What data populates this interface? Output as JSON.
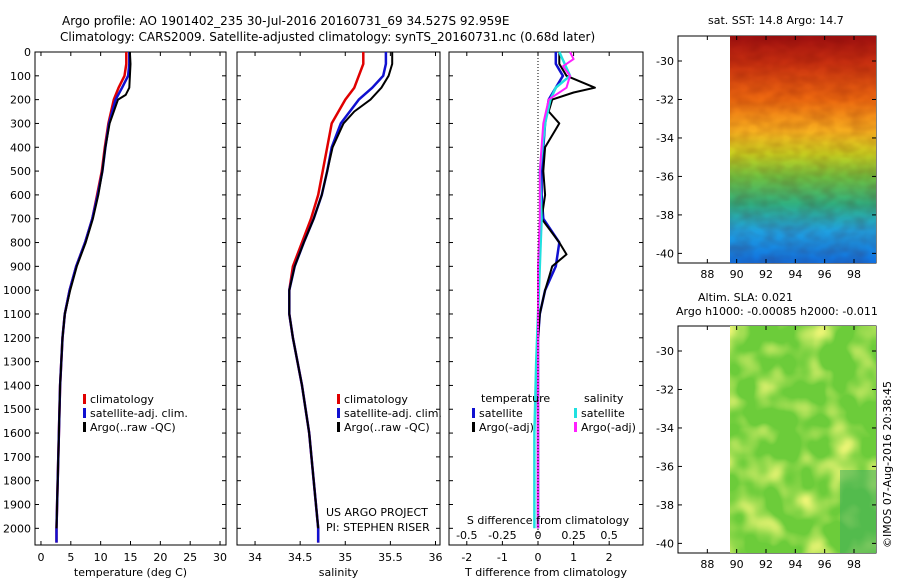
{
  "header": {
    "line1": "Argo profile: AO 1901402_235 30-Jul-2016 20160731_69 34.527S 92.959E",
    "line2": "Climatology: CARS2009. Satellite-adjusted climatology: synTS_20160731.nc (0.68d later)"
  },
  "colors": {
    "climatology": "#e00000",
    "satellite": "#1010d0",
    "argo": "#000000",
    "satellite_salinity": "#20e0e0",
    "argo_salinity": "#ff20ff"
  },
  "credits": {
    "project": "US ARGO PROJECT",
    "pi": "PI: STEPHEN RISER",
    "stamp": "©IMOS 07-Aug-2016 20:38:45"
  },
  "chart_data": [
    {
      "type": "line",
      "panel": "temperature",
      "xlabel": "temperature (deg C)",
      "ylabel": "",
      "xlim": [
        -1,
        31
      ],
      "ylim": [
        2070,
        0
      ],
      "xticks": [
        0,
        5,
        10,
        15,
        20,
        25,
        30
      ],
      "yticks": [
        0,
        100,
        200,
        300,
        400,
        500,
        600,
        700,
        800,
        900,
        1000,
        1100,
        1200,
        1300,
        1400,
        1500,
        1600,
        1700,
        1800,
        1900,
        2000
      ],
      "legend": [
        "climatology",
        "satellite-adj. clim.",
        "Argo(..raw -QC)"
      ],
      "series": [
        {
          "name": "climatology",
          "pressure": [
            0,
            50,
            100,
            150,
            200,
            300,
            400,
            500,
            600,
            700,
            800,
            900,
            1000,
            1100,
            1200,
            1400,
            1600,
            1800,
            2000,
            2060
          ],
          "values": [
            14.3,
            14.3,
            14.0,
            13.0,
            12.2,
            11.3,
            10.7,
            10.2,
            9.4,
            8.6,
            7.4,
            5.9,
            4.8,
            4.0,
            3.6,
            3.2,
            3.0,
            2.8,
            2.6,
            2.6
          ]
        },
        {
          "name": "satellite-adj. clim.",
          "pressure": [
            0,
            50,
            100,
            150,
            200,
            300,
            400,
            500,
            600,
            700,
            800,
            900,
            1000,
            1100,
            1200,
            1400,
            1600,
            1800,
            2000,
            2060
          ],
          "values": [
            14.8,
            14.8,
            14.6,
            13.6,
            12.5,
            11.4,
            10.8,
            10.3,
            9.5,
            8.6,
            7.4,
            5.9,
            4.8,
            4.0,
            3.6,
            3.2,
            3.0,
            2.8,
            2.6,
            2.6
          ]
        },
        {
          "name": "Argo(..raw -QC)",
          "pressure": [
            0,
            50,
            100,
            150,
            180,
            200,
            300,
            400,
            500,
            600,
            700,
            800,
            900,
            1000,
            1100,
            1200,
            1400,
            1600,
            1800,
            2000
          ],
          "values": [
            14.9,
            15.0,
            14.9,
            14.8,
            14.2,
            12.9,
            11.5,
            10.8,
            10.3,
            9.6,
            8.7,
            7.5,
            6.0,
            4.9,
            4.0,
            3.6,
            3.2,
            3.0,
            2.8,
            2.6
          ]
        }
      ]
    },
    {
      "type": "line",
      "panel": "salinity",
      "xlabel": "salinity",
      "ylabel": "",
      "xlim": [
        33.8,
        36.05
      ],
      "ylim": [
        2070,
        0
      ],
      "xticks": [
        34,
        34.5,
        35,
        35.5,
        36
      ],
      "xticklabels": [
        "34",
        "34.5",
        "35",
        "35.5",
        "36"
      ],
      "legend": [
        "climatology",
        "satellite-adj. clim.",
        "Argo(..raw -QC)"
      ],
      "series": [
        {
          "name": "climatology",
          "pressure": [
            0,
            50,
            100,
            150,
            200,
            300,
            400,
            500,
            600,
            700,
            800,
            900,
            1000,
            1100,
            1200,
            1400,
            1600,
            1800,
            2000,
            2060
          ],
          "values": [
            35.2,
            35.2,
            35.15,
            35.1,
            35.0,
            34.85,
            34.8,
            34.75,
            34.7,
            34.62,
            34.52,
            34.42,
            34.38,
            34.38,
            34.42,
            34.52,
            34.6,
            34.65,
            34.7,
            34.7
          ]
        },
        {
          "name": "satellite-adj. clim.",
          "pressure": [
            0,
            50,
            100,
            150,
            200,
            300,
            400,
            500,
            600,
            700,
            800,
            900,
            1000,
            1100,
            1200,
            1400,
            1600,
            1800,
            2000,
            2060
          ],
          "values": [
            35.45,
            35.45,
            35.42,
            35.3,
            35.15,
            34.95,
            34.85,
            34.8,
            34.74,
            34.65,
            34.54,
            34.44,
            34.38,
            34.38,
            34.42,
            34.52,
            34.6,
            34.65,
            34.7,
            34.7
          ]
        },
        {
          "name": "Argo(..raw -QC)",
          "pressure": [
            0,
            50,
            100,
            150,
            200,
            250,
            300,
            400,
            500,
            600,
            700,
            800,
            900,
            1000,
            1100,
            1200,
            1400,
            1600,
            1800,
            2000
          ],
          "values": [
            35.52,
            35.52,
            35.48,
            35.4,
            35.28,
            35.1,
            34.98,
            34.86,
            34.8,
            34.74,
            34.65,
            34.54,
            34.44,
            34.38,
            34.38,
            34.42,
            34.52,
            34.6,
            34.65,
            34.7
          ]
        }
      ]
    },
    {
      "type": "line",
      "panel": "difference",
      "xlabel": "T difference from climatology",
      "xlabel_top": "S difference from climatology",
      "xlim": [
        -2.5,
        2.95
      ],
      "ylim": [
        2070,
        0
      ],
      "xticks": [
        -2,
        -1,
        0,
        1,
        2
      ],
      "top_ticks": [
        "-0.5",
        "-0.25",
        "0",
        "0.25",
        "0.5"
      ],
      "legend_temperature": {
        "title": "temperature",
        "items": [
          "satellite",
          "Argo(-adj)"
        ]
      },
      "legend_salinity": {
        "title": "salinity",
        "items": [
          "satellite",
          "Argo(-adj)"
        ]
      },
      "series": [
        {
          "name": "temperature satellite",
          "pressure": [
            0,
            50,
            100,
            150,
            200,
            300,
            400,
            500,
            600,
            700,
            800,
            900,
            1000,
            1100,
            1200,
            1500,
            2000
          ],
          "values": [
            0.5,
            0.5,
            0.7,
            0.5,
            0.3,
            0.2,
            0.15,
            0.1,
            0.1,
            0.15,
            0.6,
            0.5,
            0.2,
            0.05,
            0.0,
            0.0,
            0.0
          ]
        },
        {
          "name": "temperature Argo(-adj)",
          "pressure": [
            0,
            50,
            100,
            150,
            170,
            200,
            250,
            300,
            400,
            500,
            600,
            700,
            800,
            850,
            900,
            950,
            1000,
            1100,
            1200,
            1500,
            2000
          ],
          "values": [
            0.6,
            0.6,
            0.8,
            1.6,
            1.0,
            0.4,
            0.3,
            0.6,
            0.2,
            0.15,
            0.2,
            0.1,
            0.6,
            0.8,
            0.4,
            0.3,
            0.2,
            0.05,
            0.0,
            0.0,
            0.0
          ]
        },
        {
          "name": "salinity satellite",
          "pressure": [
            0,
            50,
            100,
            150,
            200,
            300,
            500,
            700,
            900,
            1100,
            1300,
            1600,
            2000
          ],
          "values": [
            0.6,
            0.75,
            0.9,
            0.5,
            0.35,
            0.2,
            0.05,
            0.1,
            0.05,
            0.0,
            -0.05,
            -0.1,
            -0.1
          ]
        },
        {
          "name": "salinity Argo(-adj)",
          "pressure": [
            0,
            30,
            60,
            100,
            150,
            200,
            300,
            500,
            700,
            900,
            1100,
            1300,
            1600,
            2000
          ],
          "values": [
            0.9,
            1.0,
            0.7,
            0.9,
            0.8,
            0.3,
            0.15,
            0.05,
            0.05,
            0.0,
            0.0,
            0.0,
            0.0,
            0.0
          ]
        }
      ]
    },
    {
      "type": "heatmap",
      "panel": "sst_map",
      "title": "sat. SST: 14.8 Argo: 14.7",
      "xlim": [
        86,
        99.5
      ],
      "ylim": [
        -40.5,
        -28.7
      ],
      "xticks": [
        88,
        90,
        92,
        94,
        96,
        98
      ],
      "yticks": [
        -30,
        -32,
        -34,
        -36,
        -38,
        -40
      ]
    },
    {
      "type": "heatmap",
      "panel": "sla_map",
      "title": "Altim. SLA: 0.021",
      "subtitle": "Argo h1000: -0.00085 h2000: -0.011",
      "xlim": [
        86,
        99.5
      ],
      "ylim": [
        -40.5,
        -28.7
      ],
      "xticks": [
        88,
        90,
        92,
        94,
        96,
        98
      ],
      "yticks": [
        -30,
        -32,
        -34,
        -36,
        -38,
        -40
      ]
    }
  ]
}
